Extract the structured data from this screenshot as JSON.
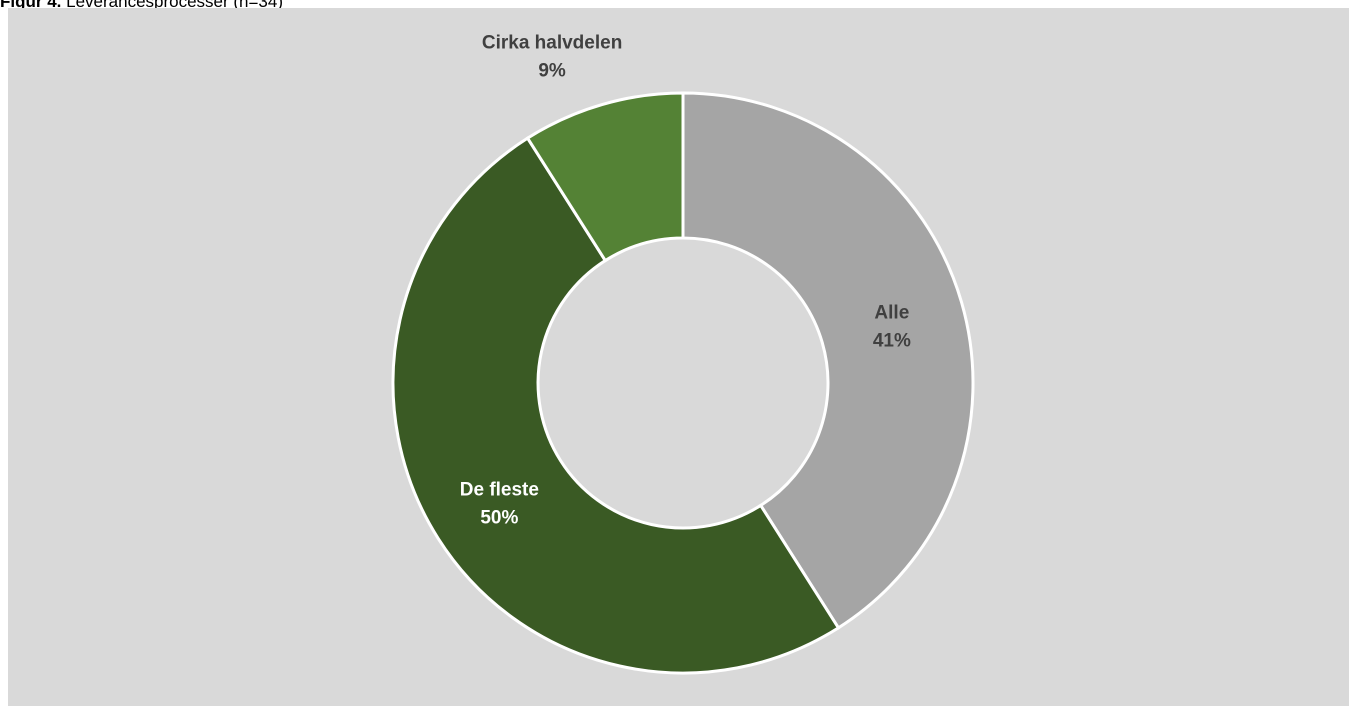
{
  "caption": {
    "lead": "Figur 4.",
    "text": "Leverancesprocesser (n=34)"
  },
  "chart_data": {
    "type": "pie",
    "variant": "donut",
    "title": "",
    "categories": [
      "Alle",
      "De fleste",
      "Cirka halvdelen"
    ],
    "values": [
      41,
      50,
      9
    ],
    "labels": [
      "41%",
      "50%",
      "9%"
    ],
    "colors": [
      "#a5a5a5",
      "#3a5a24",
      "#548235"
    ],
    "label_colors": [
      "#404040",
      "#ffffff",
      "#404040"
    ],
    "background": "#d9d9d9",
    "legend": "none"
  }
}
